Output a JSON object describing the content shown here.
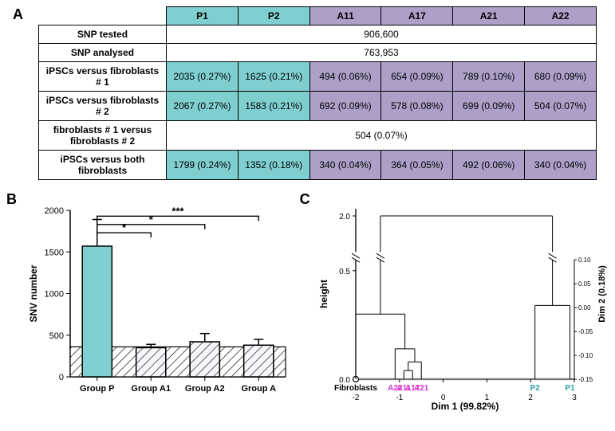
{
  "palette": {
    "cyan": "#7fcfd1",
    "purple": "#ae9fc9",
    "black": "#000000",
    "white": "#ffffff",
    "magenta": "#d936cd",
    "teal_text": "#2a9fa3",
    "hatch": "#000000"
  },
  "panelA": {
    "label": "A",
    "columns": [
      {
        "id": "P1",
        "color": "cyan"
      },
      {
        "id": "P2",
        "color": "cyan"
      },
      {
        "id": "A11",
        "color": "purple"
      },
      {
        "id": "A17",
        "color": "purple"
      },
      {
        "id": "A21",
        "color": "purple"
      },
      {
        "id": "A22",
        "color": "purple"
      }
    ],
    "rows": [
      {
        "header": "SNP tested",
        "span": "906,600"
      },
      {
        "header": "SNP analysed",
        "span": "763,953"
      },
      {
        "header": "iPSCs versus fibroblasts # 1",
        "cells": [
          "2035 (0.27%)",
          "1625 (0.21%)",
          "494 (0.06%)",
          "654 (0.09%)",
          "789 (0.10%)",
          "680 (0.09%)"
        ]
      },
      {
        "header": "iPSCs versus fibroblasts # 2",
        "cells": [
          "2067 (0.27%)",
          "1583 (0.21%)",
          "692 (0.09%)",
          "578 (0.08%)",
          "699 (0.09%)",
          "504 (0.07%)"
        ]
      },
      {
        "header": "fibroblasts # 1 versus fibroblasts # 2",
        "span": "504 (0.07%)"
      },
      {
        "header": "iPSCs versus both fibroblasts",
        "cells": [
          "1799 (0.24%)",
          "1352 (0.18%)",
          "340 (0.04%)",
          "364 (0.05%)",
          "492 (0.06%)",
          "340 (0.04%)"
        ]
      }
    ]
  },
  "panelB": {
    "label": "B",
    "type": "bar",
    "ylabel": "SNV number",
    "ylim": [
      0,
      2000
    ],
    "yticks": [
      0,
      500,
      1000,
      1500,
      2000
    ],
    "bar_width": 0.55,
    "groups": [
      {
        "name": "Group P",
        "value": 1570,
        "err": 320,
        "color": "#7fcfd1",
        "hatched": false
      },
      {
        "name": "Group A1",
        "value": 350,
        "err": 40,
        "color": "#ae9fc9",
        "hatched": true
      },
      {
        "name": "Group A2",
        "value": 420,
        "err": 100,
        "color": "#ae9fc9",
        "hatched": true
      },
      {
        "name": "Group A",
        "value": 380,
        "err": 70,
        "color": "#ae9fc9",
        "hatched": true
      }
    ],
    "reference_band": 360,
    "sig": [
      {
        "from": 0,
        "to": 1,
        "label": "*",
        "y": 1730
      },
      {
        "from": 0,
        "to": 2,
        "label": "*",
        "y": 1830
      },
      {
        "from": 0,
        "to": 3,
        "label": "***",
        "y": 1930
      }
    ],
    "label_fontsize": 12,
    "tick_fontsize": 11
  },
  "panelC": {
    "label": "C",
    "type": "dendrogram",
    "ylabel": "height",
    "xlabel": "Dim 1 (99.82%)",
    "rlabel": "Dim 2 (0.18%)",
    "xlim": [
      -2,
      3
    ],
    "xticks": [
      -2,
      -1,
      0,
      1,
      2,
      3
    ],
    "ylim_upper": [
      1.5,
      2.1
    ],
    "ylim_lower": [
      0.0,
      0.55
    ],
    "yticks_upper": [
      2.0
    ],
    "yticks_lower": [
      0.0,
      0.5
    ],
    "rticks": [
      "0.10",
      "0.05",
      "0.00",
      "-0.05",
      "-0.10",
      "-0.15"
    ],
    "leaves": [
      {
        "name": "Fibroblasts",
        "x": -2.0,
        "color": "#000000",
        "marker": "open-circle"
      },
      {
        "name": "A22",
        "x": -1.1,
        "color": "#d936cd"
      },
      {
        "name": "A11",
        "x": -0.9,
        "color": "#d936cd"
      },
      {
        "name": "A17",
        "x": -0.7,
        "color": "#d936cd"
      },
      {
        "name": "A21",
        "x": -0.5,
        "color": "#d936cd"
      },
      {
        "name": "P2",
        "x": 2.1,
        "color": "#2a9fa3"
      },
      {
        "name": "P1",
        "x": 2.9,
        "color": "#2a9fa3"
      }
    ],
    "merges": [
      {
        "members": [
          "A11",
          "A17"
        ],
        "h": 0.04,
        "id": "mA"
      },
      {
        "members": [
          "mA",
          "A21"
        ],
        "h": 0.08,
        "id": "mB"
      },
      {
        "members": [
          "mB",
          "A22"
        ],
        "h": 0.14,
        "id": "mC"
      },
      {
        "members": [
          "Fibroblasts",
          "mC"
        ],
        "h": 0.3,
        "id": "mD"
      },
      {
        "members": [
          "P2",
          "P1"
        ],
        "h": 0.34,
        "id": "mE"
      },
      {
        "members": [
          "mD",
          "mE"
        ],
        "h": 2.0,
        "id": "root"
      }
    ],
    "axis_break_y": 0.55,
    "label_fontsize": 12,
    "tick_fontsize": 10
  }
}
